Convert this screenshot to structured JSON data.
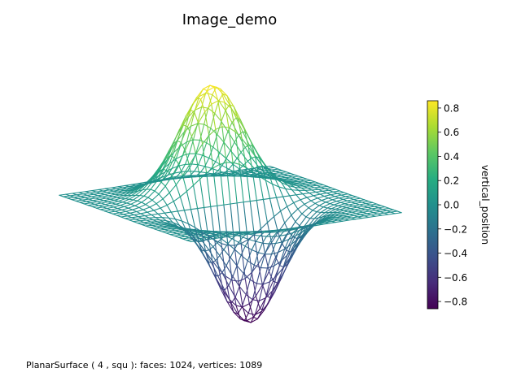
{
  "figure": {
    "title": "Image_demo",
    "caption": "PlanarSurface ( 4 , squ ):  faces: 1024,  vertices: 1089"
  },
  "chart_data": {
    "type": "surface",
    "title": "Image_demo",
    "surface": "wireframe",
    "grid_divisions": 32,
    "faces": 1024,
    "vertices": 1089,
    "z_range": [
      -0.86,
      0.86
    ],
    "axes_visible": false,
    "colorbar": {
      "label": "vertical_position",
      "colormap": "viridis",
      "ticks": [
        0.8,
        0.6,
        0.4,
        0.2,
        0.0,
        -0.2,
        -0.4,
        -0.6,
        -0.8
      ],
      "tick_labels": [
        "0.8",
        "0.6",
        "0.4",
        "0.2",
        "0.0",
        "−0.2",
        "−0.4",
        "−0.6",
        "−0.8"
      ],
      "range": [
        -0.86,
        0.86
      ]
    }
  }
}
